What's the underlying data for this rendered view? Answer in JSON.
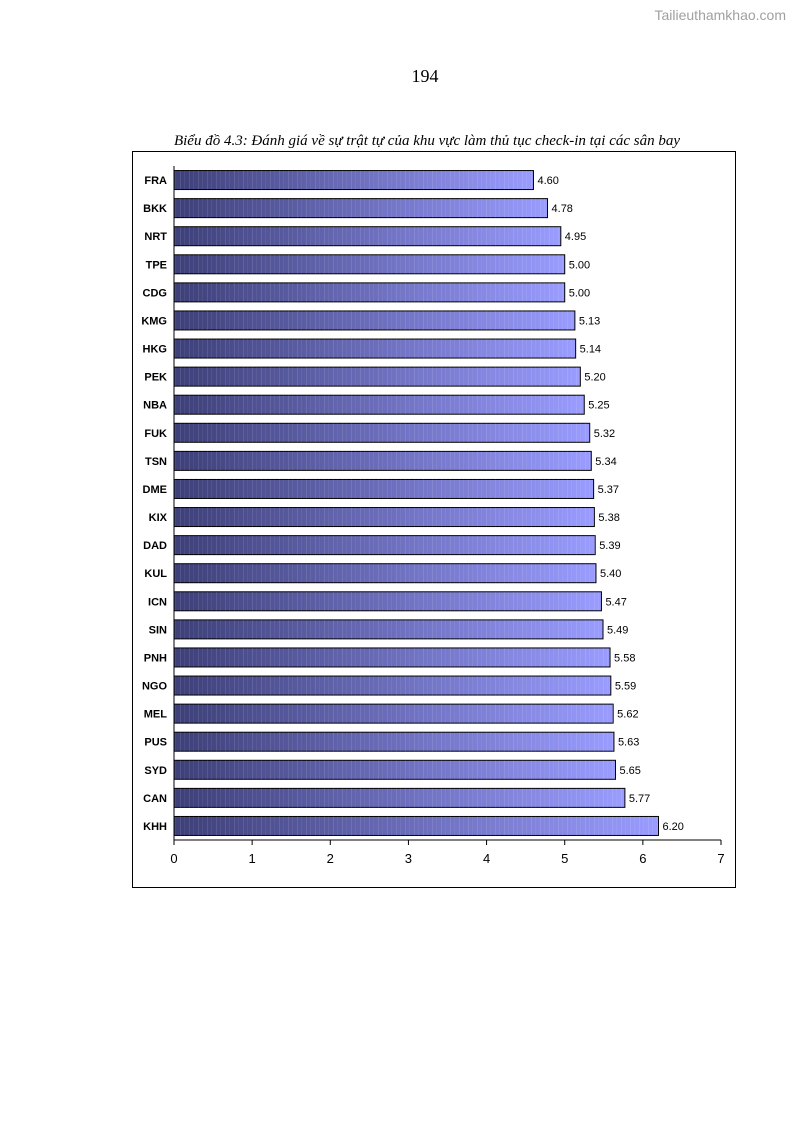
{
  "watermark": "Tailieuthamkhao.com",
  "page_number": "194",
  "caption": "Biểu đồ 4.3: Đánh giá về sự trật tự của khu vực làm thủ tục check-in tại các sân bay",
  "colors": {
    "bar_dark": "#3d3f78",
    "bar_light": "#9a9cff",
    "bar_border": "#000000"
  },
  "chart_data": {
    "type": "bar",
    "orientation": "horizontal",
    "categories": [
      "FRA",
      "BKK",
      "NRT",
      "TPE",
      "CDG",
      "KMG",
      "HKG",
      "PEK",
      "NBA",
      "FUK",
      "TSN",
      "DME",
      "KIX",
      "DAD",
      "KUL",
      "ICN",
      "SIN",
      "PNH",
      "NGO",
      "MEL",
      "PUS",
      "SYD",
      "CAN",
      "KHH"
    ],
    "values": [
      4.6,
      4.78,
      4.95,
      5.0,
      5.0,
      5.13,
      5.14,
      5.2,
      5.25,
      5.32,
      5.34,
      5.37,
      5.38,
      5.39,
      5.4,
      5.47,
      5.49,
      5.58,
      5.59,
      5.62,
      5.63,
      5.65,
      5.77,
      6.2
    ],
    "value_labels": [
      "4.60",
      "4.78",
      "4.95",
      "5.00",
      "5.00",
      "5.13",
      "5.14",
      "5.20",
      "5.25",
      "5.32",
      "5.34",
      "5.37",
      "5.38",
      "5.39",
      "5.40",
      "5.47",
      "5.49",
      "5.58",
      "5.59",
      "5.62",
      "5.63",
      "5.65",
      "5.77",
      "6.20"
    ],
    "xlim": [
      0,
      7
    ],
    "x_ticks": [
      "0",
      "1",
      "2",
      "3",
      "4",
      "5",
      "6",
      "7"
    ],
    "grid": false,
    "legend": "none"
  }
}
